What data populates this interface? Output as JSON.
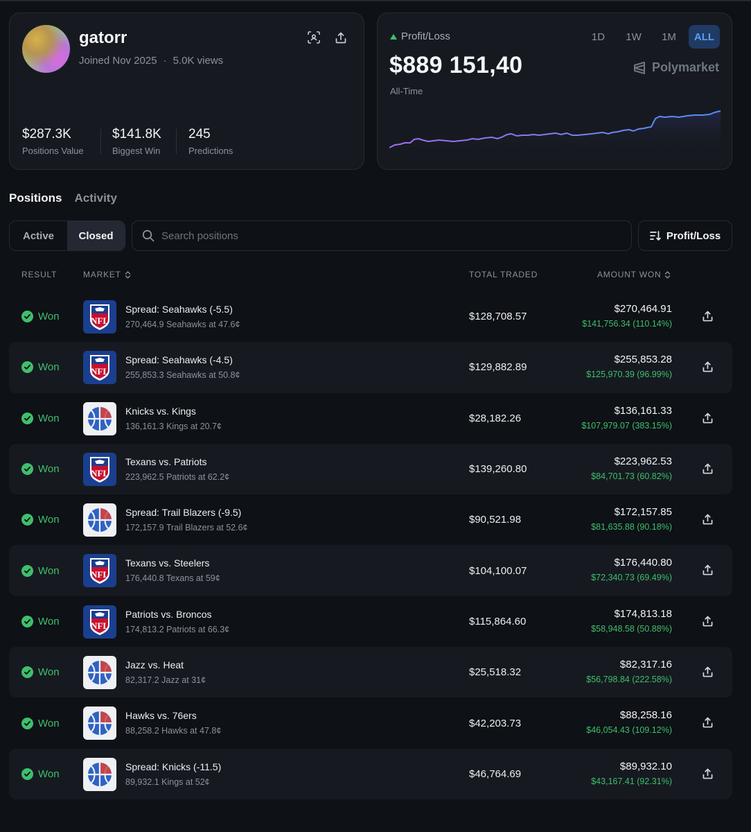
{
  "profile": {
    "username": "gatorr",
    "joined": "Joined Nov 2025",
    "views": "5.0K views",
    "separator": "·",
    "stats": [
      {
        "value": "$287.3K",
        "label": "Positions Value"
      },
      {
        "value": "$141.8K",
        "label": "Biggest Win"
      },
      {
        "value": "245",
        "label": "Predictions"
      }
    ]
  },
  "pnl": {
    "label": "Profit/Loss",
    "value": "$889 151,40",
    "period_label": "All-Time",
    "ranges": [
      "1D",
      "1W",
      "1M",
      "ALL"
    ],
    "active_range": "ALL",
    "brand": "Polymarket",
    "colors": {
      "line_start": "#a56cf0",
      "line_end": "#4f8ff7"
    }
  },
  "tabs": [
    {
      "label": "Positions",
      "active": true
    },
    {
      "label": "Activity",
      "active": false
    }
  ],
  "filters": {
    "segments": [
      {
        "label": "Active",
        "active": false
      },
      {
        "label": "Closed",
        "active": true
      }
    ],
    "search_placeholder": "Search positions",
    "sort_label": "Profit/Loss"
  },
  "table": {
    "headers": {
      "result": "RESULT",
      "market": "MARKET",
      "total": "TOTAL TRADED",
      "amount": "AMOUNT WON"
    },
    "rows": [
      {
        "result": "Won",
        "league": "nfl",
        "title": "Spread: Seahawks (-5.5)",
        "sub": "270,464.9 Seahawks at 47.6¢",
        "total": "$128,708.57",
        "won": "$270,464.91",
        "gain": "$141,756.34 (110.14%)"
      },
      {
        "result": "Won",
        "league": "nfl",
        "title": "Spread: Seahawks (-4.5)",
        "sub": "255,853.3 Seahawks at 50.8¢",
        "total": "$129,882.89",
        "won": "$255,853.28",
        "gain": "$125,970.39 (96.99%)"
      },
      {
        "result": "Won",
        "league": "nba",
        "title": "Knicks vs. Kings",
        "sub": "136,161.3 Kings at 20.7¢",
        "total": "$28,182.26",
        "won": "$136,161.33",
        "gain": "$107,979.07 (383.15%)"
      },
      {
        "result": "Won",
        "league": "nfl",
        "title": "Texans vs. Patriots",
        "sub": "223,962.5 Patriots at 62.2¢",
        "total": "$139,260.80",
        "won": "$223,962.53",
        "gain": "$84,701.73 (60.82%)"
      },
      {
        "result": "Won",
        "league": "nba",
        "title": "Spread: Trail Blazers (-9.5)",
        "sub": "172,157.9 Trail Blazers at 52.6¢",
        "total": "$90,521.98",
        "won": "$172,157.85",
        "gain": "$81,635.88 (90.18%)"
      },
      {
        "result": "Won",
        "league": "nfl",
        "title": "Texans vs. Steelers",
        "sub": "176,440.8 Texans at 59¢",
        "total": "$104,100.07",
        "won": "$176,440.80",
        "gain": "$72,340.73 (69.49%)"
      },
      {
        "result": "Won",
        "league": "nfl",
        "title": "Patriots vs. Broncos",
        "sub": "174,813.2 Patriots at 66.3¢",
        "total": "$115,864.60",
        "won": "$174,813.18",
        "gain": "$58,948.58 (50.88%)"
      },
      {
        "result": "Won",
        "league": "nba",
        "title": "Jazz vs. Heat",
        "sub": "82,317.2 Jazz at 31¢",
        "total": "$25,518.32",
        "won": "$82,317.16",
        "gain": "$56,798.84 (222.58%)"
      },
      {
        "result": "Won",
        "league": "nba",
        "title": "Hawks vs. 76ers",
        "sub": "88,258.2 Hawks at 47.8¢",
        "total": "$42,203.73",
        "won": "$88,258.16",
        "gain": "$46,054.43 (109.12%)"
      },
      {
        "result": "Won",
        "league": "nba",
        "title": "Spread: Knicks (-11.5)",
        "sub": "89,932.1 Kings at 52¢",
        "total": "$46,764.69",
        "won": "$89,932.10",
        "gain": "$43,167.41 (92.31%)"
      }
    ]
  }
}
